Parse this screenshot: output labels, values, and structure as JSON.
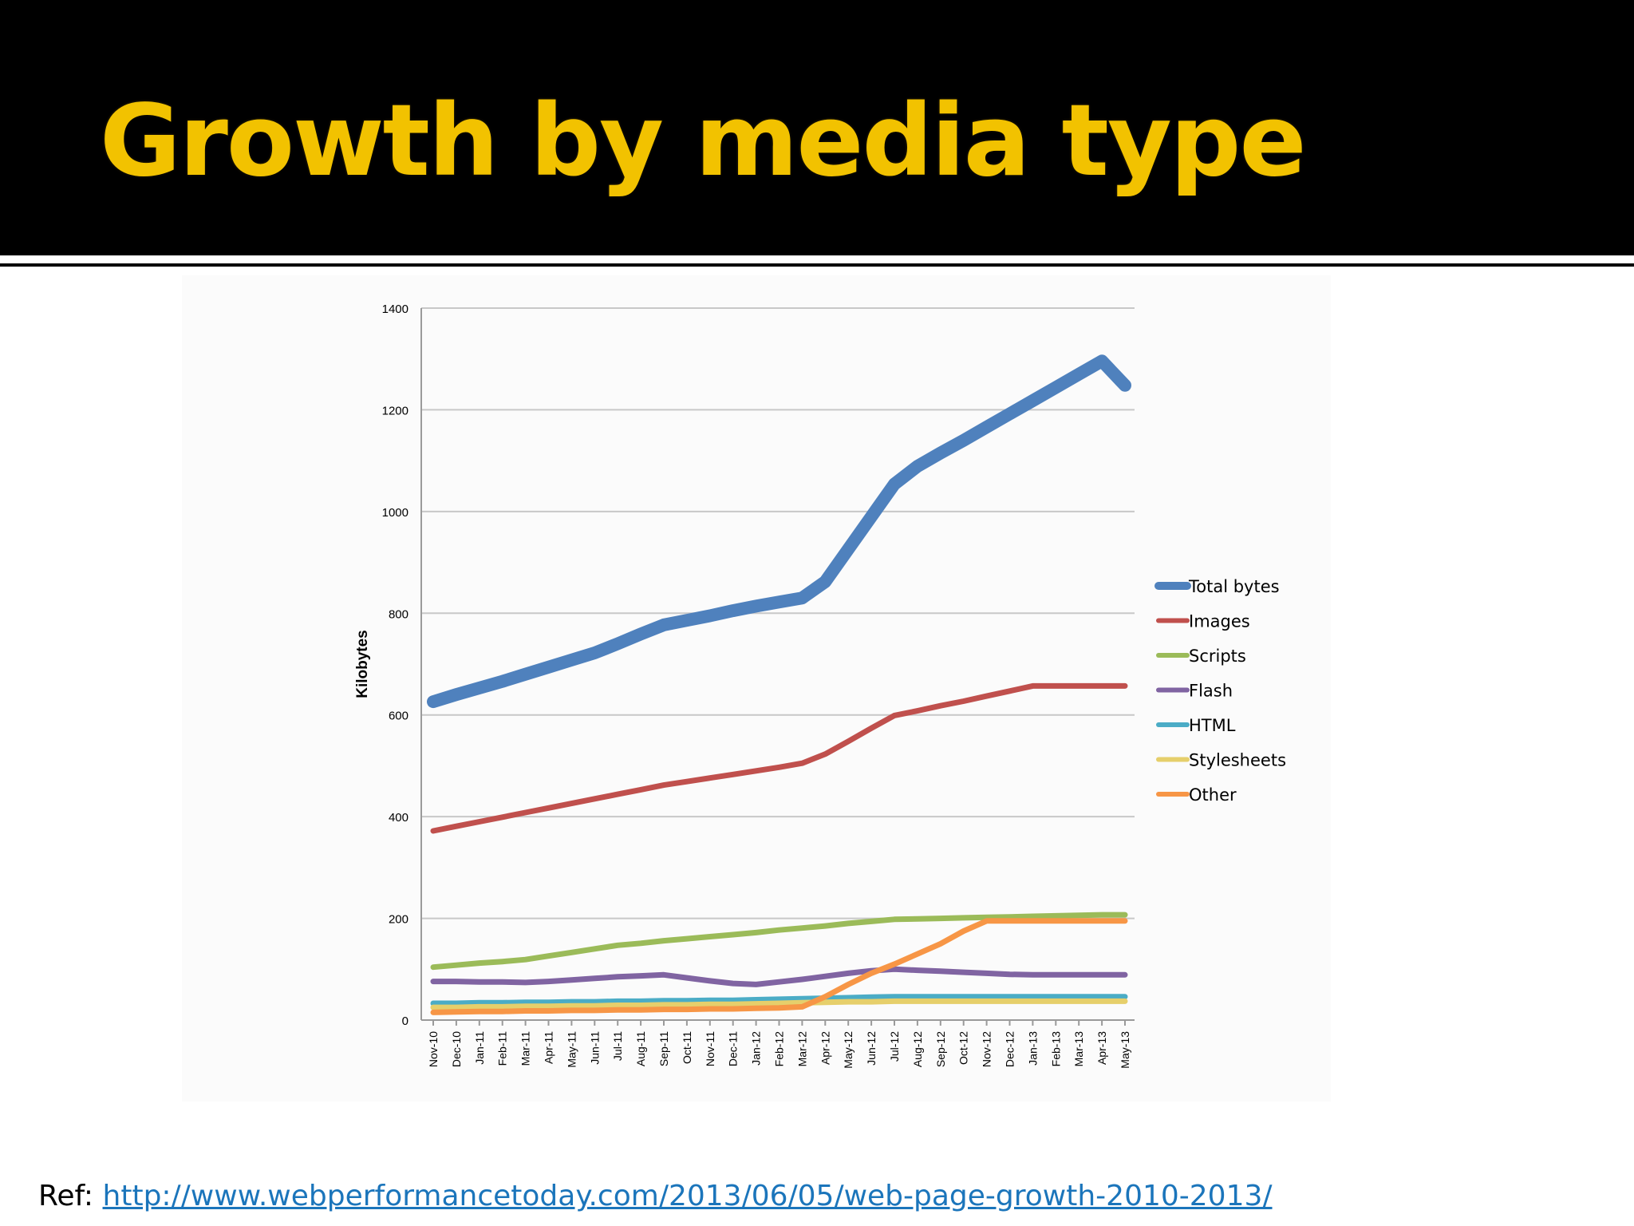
{
  "slide": {
    "title": "Growth by media type",
    "ref_label": "Ref: ",
    "ref_url": "http://www.webperformancetoday.com/2013/06/05/web-page-growth-2010-2013/"
  },
  "colors": {
    "title": "#f2c200",
    "link": "#1b75bb"
  },
  "chart_data": {
    "type": "line",
    "title": "",
    "xlabel": "",
    "ylabel": "Kilobytes",
    "ylim": [
      0,
      1400
    ],
    "yticks": [
      0,
      200,
      400,
      600,
      800,
      1000,
      1200,
      1400
    ],
    "grid": true,
    "legend_position": "right",
    "categories": [
      "Nov-10",
      "Dec-10",
      "Jan-11",
      "Feb-11",
      "Mar-11",
      "Apr-11",
      "May-11",
      "Jun-11",
      "Jul-11",
      "Aug-11",
      "Sep-11",
      "Oct-11",
      "Nov-11",
      "Dec-11",
      "Jan-12",
      "Feb-12",
      "Mar-12",
      "Apr-12",
      "May-12",
      "Jun-12",
      "Jul-12",
      "Aug-12",
      "Sep-12",
      "Oct-12",
      "Nov-12",
      "Dec-12",
      "Jan-13",
      "Feb-13",
      "Mar-13",
      "Apr-13",
      "May-13"
    ],
    "series": [
      {
        "name": "Total bytes",
        "color": "#4f81bd",
        "width": "thick",
        "values": [
          626,
          640,
          653,
          666,
          680,
          694,
          708,
          722,
          740,
          759,
          777,
          786,
          795,
          805,
          814,
          822,
          830,
          862,
          926,
          990,
          1054,
          1089,
          1115,
          1140,
          1166,
          1192,
          1218,
          1244,
          1270,
          1296,
          1248
        ]
      },
      {
        "name": "Images",
        "color": "#c0504d",
        "width": "normal",
        "values": [
          372,
          381,
          390,
          399,
          408,
          417,
          426,
          435,
          444,
          453,
          462,
          469,
          476,
          483,
          490,
          497,
          505,
          523,
          548,
          574,
          599,
          608,
          618,
          627,
          637,
          647,
          657,
          657,
          657,
          657,
          657
        ]
      },
      {
        "name": "Scripts",
        "color": "#9bbb59",
        "width": "normal",
        "values": [
          104,
          108,
          112,
          115,
          119,
          126,
          133,
          140,
          147,
          151,
          156,
          160,
          164,
          168,
          172,
          177,
          181,
          185,
          190,
          194,
          198,
          199,
          200,
          201,
          202,
          203,
          204,
          205,
          206,
          207,
          207
        ]
      },
      {
        "name": "Flash",
        "color": "#8064a2",
        "width": "normal",
        "values": [
          76,
          76,
          75,
          75,
          74,
          76,
          79,
          82,
          85,
          87,
          89,
          83,
          77,
          72,
          70,
          75,
          80,
          86,
          92,
          97,
          100,
          98,
          96,
          94,
          92,
          90,
          89,
          89,
          89,
          89,
          89
        ]
      },
      {
        "name": "HTML",
        "color": "#4bacc6",
        "width": "normal",
        "values": [
          33,
          33,
          34,
          34,
          35,
          35,
          36,
          36,
          37,
          37,
          38,
          38,
          39,
          39,
          40,
          41,
          42,
          43,
          44,
          45,
          46,
          46,
          46,
          46,
          46,
          46,
          46,
          46,
          46,
          46,
          46
        ]
      },
      {
        "name": "Stylesheets",
        "color": "#e6cf6b",
        "width": "normal",
        "values": [
          25,
          25,
          26,
          26,
          27,
          27,
          28,
          28,
          29,
          29,
          30,
          30,
          31,
          31,
          32,
          33,
          34,
          35,
          36,
          36,
          37,
          37,
          37,
          37,
          37,
          37,
          37,
          37,
          37,
          37,
          37
        ]
      },
      {
        "name": "Other",
        "color": "#f79646",
        "width": "normal",
        "values": [
          15,
          16,
          17,
          17,
          18,
          18,
          19,
          19,
          20,
          20,
          21,
          21,
          22,
          22,
          23,
          24,
          26,
          46,
          70,
          92,
          110,
          130,
          150,
          175,
          195,
          195,
          195,
          195,
          195,
          195,
          195
        ]
      }
    ]
  }
}
